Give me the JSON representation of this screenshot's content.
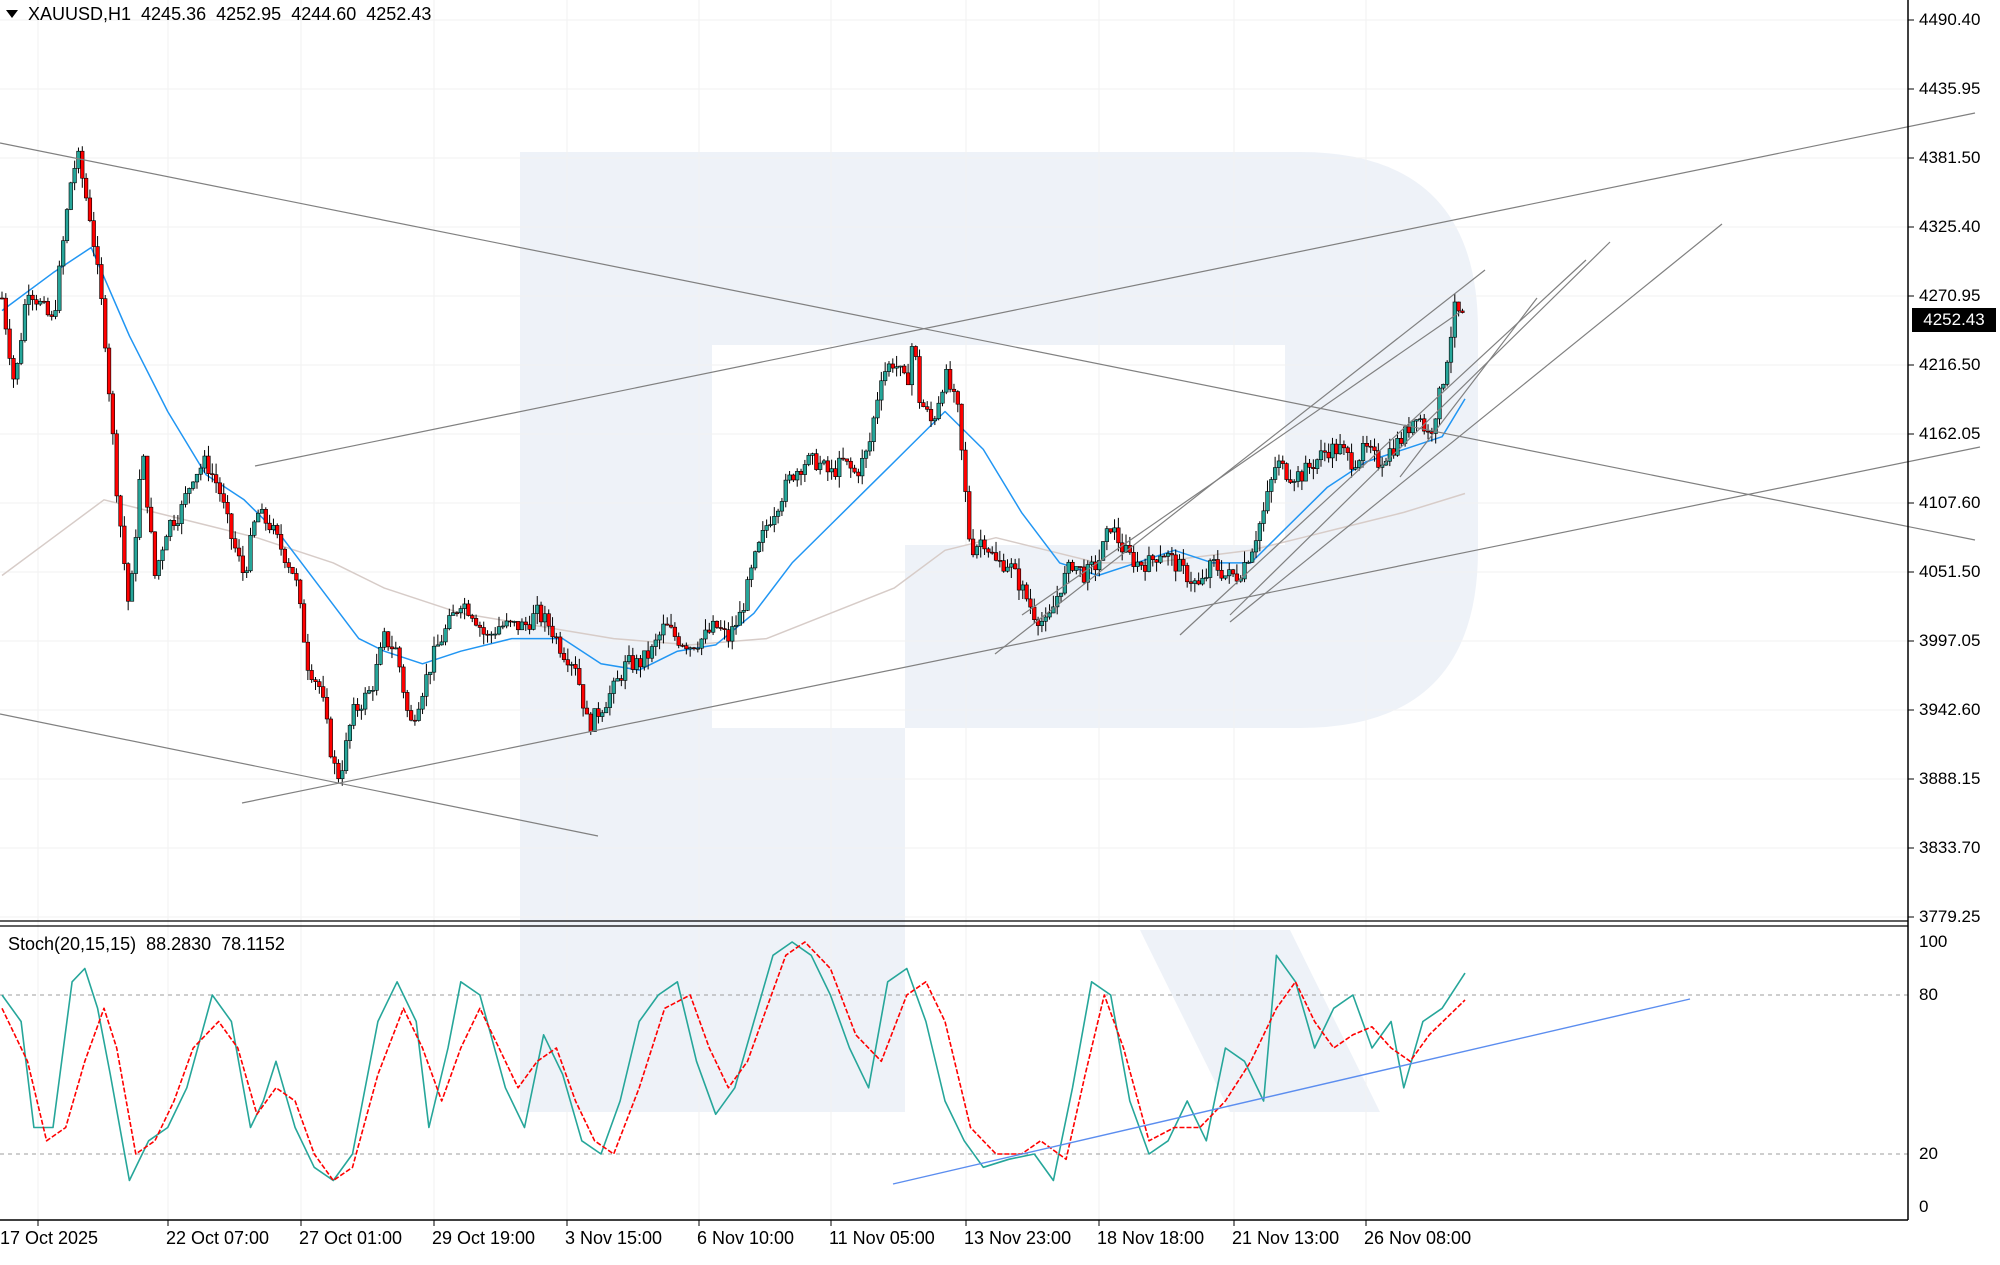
{
  "header": {
    "symbol": "XAUUSD,H1",
    "open": "4245.36",
    "high": "4252.95",
    "low": "4244.60",
    "close": "4252.43"
  },
  "current_price_label": "4252.43",
  "stoch_header": {
    "name": "Stoch(20,15,15)",
    "main": "88.2830",
    "signal": "78.1152"
  },
  "colors": {
    "up_candle": "#26a69a",
    "down_candle": "#ff0000",
    "wick": "#000000",
    "ma_fast": "#2196f3",
    "ma_slow": "#d7ccc8",
    "stoch_main": "#26a69a",
    "stoch_signal": "#ff0000",
    "trendline": "#808080",
    "stoch_trendline": "#5b8def",
    "watermark": "#e8edf5"
  },
  "chart_data": [
    {
      "type": "candlestick",
      "symbol": "XAUUSD",
      "timeframe": "H1",
      "price_axis_labels": [
        "4490.40",
        "4435.95",
        "4381.50",
        "4325.40",
        "4270.95",
        "4216.50",
        "4162.05",
        "4107.60",
        "4051.50",
        "3997.05",
        "3942.60",
        "3888.15",
        "3833.70",
        "3779.25"
      ],
      "ylim": [
        3779.25,
        4490.4
      ],
      "time_axis_labels": [
        "17 Oct 2025",
        "22 Oct 07:00",
        "27 Oct 01:00",
        "29 Oct 19:00",
        "3 Nov 15:00",
        "6 Nov 10:00",
        "11 Nov 05:00",
        "13 Nov 23:00",
        "18 Nov 18:00",
        "21 Nov 13:00",
        "26 Nov 08:00"
      ],
      "close_path_approx": [
        [
          0,
          4270
        ],
        [
          10,
          4200
        ],
        [
          20,
          4280
        ],
        [
          40,
          4250
        ],
        [
          50,
          4330
        ],
        [
          55,
          4370
        ],
        [
          60,
          4380
        ],
        [
          70,
          4330
        ],
        [
          80,
          4250
        ],
        [
          90,
          4120
        ],
        [
          100,
          4020
        ],
        [
          110,
          4150
        ],
        [
          120,
          4050
        ],
        [
          130,
          4090
        ],
        [
          140,
          4100
        ],
        [
          150,
          4130
        ],
        [
          160,
          4140
        ],
        [
          170,
          4120
        ],
        [
          180,
          4080
        ],
        [
          190,
          4050
        ],
        [
          200,
          4100
        ],
        [
          210,
          4090
        ],
        [
          220,
          4070
        ],
        [
          230,
          4050
        ],
        [
          240,
          3980
        ],
        [
          250,
          3960
        ],
        [
          260,
          3900
        ],
        [
          265,
          3890
        ],
        [
          275,
          3940
        ],
        [
          290,
          3960
        ],
        [
          300,
          4000
        ],
        [
          310,
          3990
        ],
        [
          320,
          3930
        ],
        [
          330,
          3960
        ],
        [
          340,
          3990
        ],
        [
          350,
          4010
        ],
        [
          360,
          4030
        ],
        [
          370,
          4020
        ],
        [
          380,
          4000
        ],
        [
          390,
          4010
        ],
        [
          400,
          4010
        ],
        [
          410,
          4010
        ],
        [
          420,
          4020
        ],
        [
          430,
          4010
        ],
        [
          440,
          3990
        ],
        [
          450,
          3980
        ],
        [
          460,
          3930
        ],
        [
          470,
          3945
        ],
        [
          480,
          3960
        ],
        [
          490,
          3980
        ],
        [
          500,
          3980
        ],
        [
          510,
          3990
        ],
        [
          520,
          4010
        ],
        [
          530,
          4000
        ],
        [
          540,
          3995
        ],
        [
          550,
          4000
        ],
        [
          560,
          4010
        ],
        [
          570,
          4000
        ],
        [
          580,
          4020
        ],
        [
          590,
          4060
        ],
        [
          600,
          4090
        ],
        [
          610,
          4110
        ],
        [
          620,
          4130
        ],
        [
          630,
          4140
        ],
        [
          640,
          4140
        ],
        [
          650,
          4130
        ],
        [
          660,
          4140
        ],
        [
          670,
          4130
        ],
        [
          680,
          4150
        ],
        [
          690,
          4210
        ],
        [
          700,
          4220
        ],
        [
          710,
          4200
        ],
        [
          715,
          4240
        ],
        [
          720,
          4190
        ],
        [
          730,
          4170
        ],
        [
          740,
          4210
        ],
        [
          750,
          4180
        ],
        [
          760,
          4070
        ],
        [
          770,
          4080
        ],
        [
          780,
          4060
        ],
        [
          790,
          4060
        ],
        [
          800,
          4040
        ],
        [
          810,
          4020
        ],
        [
          820,
          4010
        ],
        [
          830,
          4040
        ],
        [
          840,
          4060
        ],
        [
          850,
          4050
        ],
        [
          860,
          4060
        ],
        [
          870,
          4090
        ],
        [
          880,
          4070
        ],
        [
          890,
          4060
        ],
        [
          900,
          4060
        ],
        [
          910,
          4070
        ],
        [
          920,
          4060
        ],
        [
          930,
          4050
        ],
        [
          940,
          4040
        ],
        [
          950,
          4060
        ],
        [
          960,
          4050
        ],
        [
          970,
          4050
        ],
        [
          980,
          4070
        ],
        [
          990,
          4100
        ],
        [
          1000,
          4140
        ],
        [
          1010,
          4130
        ],
        [
          1020,
          4130
        ],
        [
          1030,
          4140
        ],
        [
          1040,
          4150
        ],
        [
          1050,
          4150
        ],
        [
          1060,
          4140
        ],
        [
          1070,
          4150
        ],
        [
          1080,
          4140
        ],
        [
          1090,
          4150
        ],
        [
          1100,
          4160
        ],
        [
          1110,
          4180
        ],
        [
          1120,
          4160
        ],
        [
          1130,
          4200
        ],
        [
          1135,
          4230
        ],
        [
          1140,
          4260
        ],
        [
          1148,
          4252
        ]
      ],
      "ma_fast_approx": [
        [
          0,
          4260
        ],
        [
          40,
          4290
        ],
        [
          70,
          4310
        ],
        [
          100,
          4240
        ],
        [
          130,
          4180
        ],
        [
          160,
          4130
        ],
        [
          190,
          4110
        ],
        [
          220,
          4080
        ],
        [
          250,
          4040
        ],
        [
          280,
          4000
        ],
        [
          300,
          3990
        ],
        [
          330,
          3980
        ],
        [
          360,
          3990
        ],
        [
          400,
          4000
        ],
        [
          440,
          4000
        ],
        [
          470,
          3980
        ],
        [
          500,
          3975
        ],
        [
          530,
          3990
        ],
        [
          560,
          3995
        ],
        [
          590,
          4020
        ],
        [
          620,
          4060
        ],
        [
          650,
          4090
        ],
        [
          680,
          4120
        ],
        [
          710,
          4150
        ],
        [
          740,
          4180
        ],
        [
          770,
          4150
        ],
        [
          800,
          4100
        ],
        [
          830,
          4060
        ],
        [
          860,
          4050
        ],
        [
          890,
          4060
        ],
        [
          920,
          4070
        ],
        [
          950,
          4060
        ],
        [
          980,
          4060
        ],
        [
          1010,
          4090
        ],
        [
          1040,
          4120
        ],
        [
          1070,
          4140
        ],
        [
          1100,
          4150
        ],
        [
          1130,
          4160
        ],
        [
          1148,
          4190
        ]
      ],
      "ma_slow_approx": [
        [
          0,
          4050
        ],
        [
          40,
          4080
        ],
        [
          80,
          4110
        ],
        [
          120,
          4100
        ],
        [
          160,
          4090
        ],
        [
          200,
          4080
        ],
        [
          260,
          4060
        ],
        [
          300,
          4040
        ],
        [
          360,
          4020
        ],
        [
          420,
          4010
        ],
        [
          480,
          4000
        ],
        [
          540,
          3995
        ],
        [
          600,
          4000
        ],
        [
          650,
          4020
        ],
        [
          700,
          4040
        ],
        [
          740,
          4070
        ],
        [
          780,
          4080
        ],
        [
          820,
          4070
        ],
        [
          860,
          4060
        ],
        [
          900,
          4060
        ],
        [
          940,
          4065
        ],
        [
          980,
          4070
        ],
        [
          1020,
          4080
        ],
        [
          1060,
          4090
        ],
        [
          1100,
          4100
        ],
        [
          1148,
          4115
        ]
      ]
    },
    {
      "type": "line",
      "name": "Stoch(20,15,15)",
      "ylim": [
        0,
        100
      ],
      "levels": [
        20,
        80
      ],
      "axis_labels": [
        "100",
        "80",
        "20",
        "0"
      ],
      "main_approx": [
        [
          0,
          80
        ],
        [
          15,
          70
        ],
        [
          25,
          30
        ],
        [
          40,
          30
        ],
        [
          55,
          85
        ],
        [
          65,
          90
        ],
        [
          75,
          75
        ],
        [
          85,
          50
        ],
        [
          100,
          10
        ],
        [
          115,
          25
        ],
        [
          130,
          30
        ],
        [
          145,
          45
        ],
        [
          165,
          80
        ],
        [
          180,
          70
        ],
        [
          195,
          30
        ],
        [
          205,
          40
        ],
        [
          215,
          55
        ],
        [
          230,
          30
        ],
        [
          245,
          15
        ],
        [
          260,
          10
        ],
        [
          275,
          20
        ],
        [
          295,
          70
        ],
        [
          310,
          85
        ],
        [
          325,
          70
        ],
        [
          335,
          30
        ],
        [
          350,
          60
        ],
        [
          360,
          85
        ],
        [
          375,
          80
        ],
        [
          395,
          45
        ],
        [
          410,
          30
        ],
        [
          425,
          65
        ],
        [
          440,
          50
        ],
        [
          455,
          25
        ],
        [
          470,
          20
        ],
        [
          485,
          40
        ],
        [
          500,
          70
        ],
        [
          515,
          80
        ],
        [
          530,
          85
        ],
        [
          545,
          55
        ],
        [
          560,
          35
        ],
        [
          575,
          45
        ],
        [
          590,
          70
        ],
        [
          605,
          95
        ],
        [
          620,
          100
        ],
        [
          635,
          95
        ],
        [
          650,
          80
        ],
        [
          665,
          60
        ],
        [
          680,
          45
        ],
        [
          695,
          85
        ],
        [
          710,
          90
        ],
        [
          725,
          70
        ],
        [
          740,
          40
        ],
        [
          755,
          25
        ],
        [
          770,
          15
        ],
        [
          790,
          18
        ],
        [
          810,
          20
        ],
        [
          825,
          10
        ],
        [
          840,
          45
        ],
        [
          855,
          85
        ],
        [
          870,
          80
        ],
        [
          885,
          40
        ],
        [
          900,
          20
        ],
        [
          915,
          25
        ],
        [
          930,
          40
        ],
        [
          945,
          25
        ],
        [
          960,
          60
        ],
        [
          975,
          55
        ],
        [
          990,
          40
        ],
        [
          1000,
          95
        ],
        [
          1015,
          85
        ],
        [
          1030,
          60
        ],
        [
          1045,
          75
        ],
        [
          1060,
          80
        ],
        [
          1075,
          60
        ],
        [
          1090,
          70
        ],
        [
          1100,
          45
        ],
        [
          1115,
          70
        ],
        [
          1130,
          75
        ],
        [
          1148,
          88.28
        ]
      ],
      "signal_approx": [
        [
          0,
          75
        ],
        [
          20,
          55
        ],
        [
          35,
          25
        ],
        [
          50,
          30
        ],
        [
          65,
          55
        ],
        [
          80,
          75
        ],
        [
          90,
          60
        ],
        [
          105,
          20
        ],
        [
          120,
          25
        ],
        [
          135,
          40
        ],
        [
          150,
          60
        ],
        [
          170,
          70
        ],
        [
          185,
          60
        ],
        [
          200,
          35
        ],
        [
          215,
          45
        ],
        [
          230,
          40
        ],
        [
          245,
          20
        ],
        [
          260,
          10
        ],
        [
          275,
          15
        ],
        [
          295,
          50
        ],
        [
          315,
          75
        ],
        [
          330,
          60
        ],
        [
          345,
          40
        ],
        [
          360,
          60
        ],
        [
          375,
          75
        ],
        [
          390,
          60
        ],
        [
          405,
          45
        ],
        [
          420,
          55
        ],
        [
          435,
          60
        ],
        [
          450,
          40
        ],
        [
          465,
          25
        ],
        [
          480,
          20
        ],
        [
          500,
          45
        ],
        [
          520,
          75
        ],
        [
          540,
          80
        ],
        [
          555,
          60
        ],
        [
          570,
          45
        ],
        [
          585,
          55
        ],
        [
          600,
          75
        ],
        [
          615,
          95
        ],
        [
          630,
          100
        ],
        [
          650,
          90
        ],
        [
          670,
          65
        ],
        [
          690,
          55
        ],
        [
          710,
          80
        ],
        [
          725,
          85
        ],
        [
          740,
          70
        ],
        [
          760,
          30
        ],
        [
          780,
          20
        ],
        [
          800,
          20
        ],
        [
          815,
          25
        ],
        [
          835,
          18
        ],
        [
          850,
          50
        ],
        [
          865,
          80
        ],
        [
          880,
          60
        ],
        [
          900,
          25
        ],
        [
          920,
          30
        ],
        [
          940,
          30
        ],
        [
          960,
          40
        ],
        [
          980,
          55
        ],
        [
          1000,
          75
        ],
        [
          1015,
          85
        ],
        [
          1030,
          70
        ],
        [
          1045,
          60
        ],
        [
          1060,
          65
        ],
        [
          1075,
          68
        ],
        [
          1090,
          60
        ],
        [
          1105,
          55
        ],
        [
          1120,
          65
        ],
        [
          1135,
          72
        ],
        [
          1148,
          78.12
        ]
      ]
    }
  ]
}
